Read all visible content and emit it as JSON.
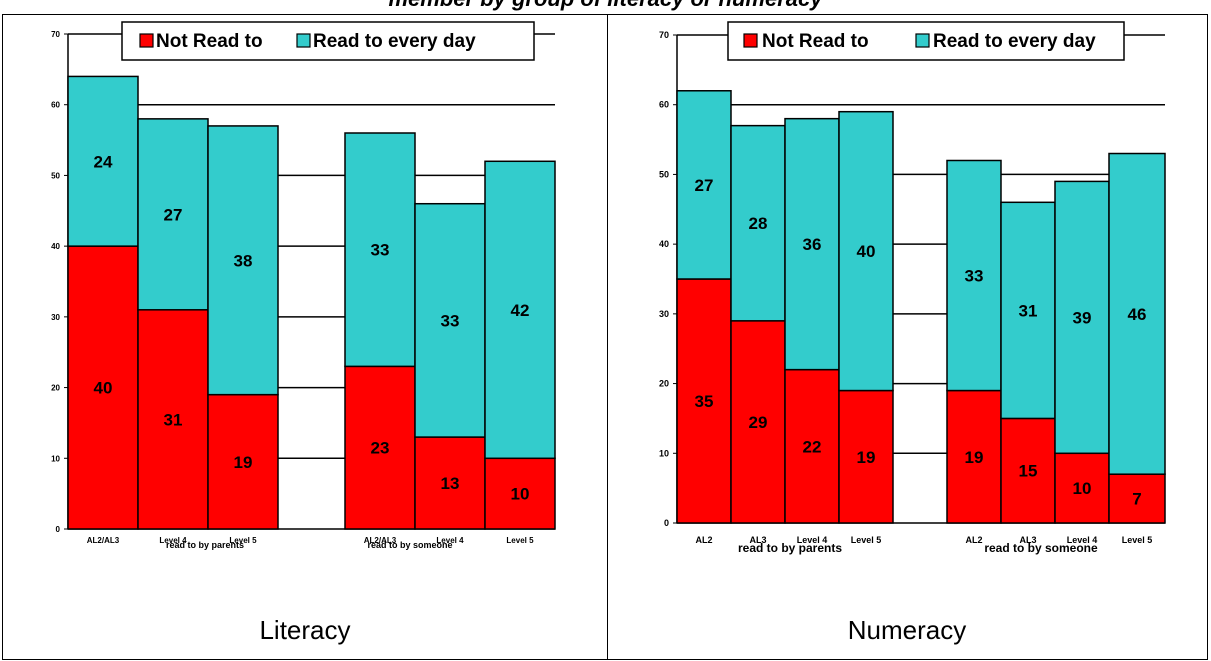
{
  "title": "member by group of literacy or numeracy",
  "colors": {
    "not_read": "#ff0000",
    "read_every_day": "#33cccc"
  },
  "panels": [
    {
      "caption": "Literacy"
    },
    {
      "caption": "Numeracy"
    }
  ],
  "chart_data": [
    {
      "type": "bar",
      "stacked": true,
      "ylim": [
        0,
        70
      ],
      "yticks": [
        0,
        10,
        20,
        30,
        40,
        50,
        60,
        70
      ],
      "grid": true,
      "legend_position": "top",
      "categories": [
        "AL2/AL3",
        "Level 4",
        "Level 5",
        "AL2/AL3",
        "Level 4",
        "Level 5"
      ],
      "groups": [
        "read to by parents",
        "read to by someone"
      ],
      "series": [
        {
          "name": "Not Read to",
          "values": [
            40,
            31,
            19,
            23,
            13,
            10
          ]
        },
        {
          "name": "Read to every day",
          "values": [
            24,
            27,
            38,
            33,
            33,
            42
          ]
        }
      ]
    },
    {
      "type": "bar",
      "stacked": true,
      "ylim": [
        0,
        70
      ],
      "yticks": [
        0,
        10,
        20,
        30,
        40,
        50,
        60,
        70
      ],
      "grid": true,
      "legend_position": "top",
      "categories": [
        "AL2",
        "AL3",
        "Level 4",
        "Level 5",
        "AL2",
        "AL3",
        "Level 4",
        "Level 5"
      ],
      "groups": [
        "read to by parents",
        "read to by someone"
      ],
      "series": [
        {
          "name": "Not Read to",
          "values": [
            35,
            29,
            22,
            19,
            19,
            15,
            10,
            7
          ]
        },
        {
          "name": "Read to every day",
          "values": [
            27,
            28,
            36,
            40,
            33,
            31,
            39,
            46
          ]
        }
      ]
    }
  ]
}
